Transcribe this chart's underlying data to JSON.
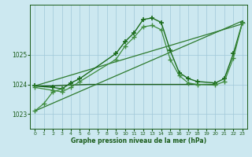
{
  "background_color": "#cce8f0",
  "grid_color": "#a0c8d8",
  "line_color_dark": "#1a5c1a",
  "xlabel": "Graphe pression niveau de la mer (hPa)",
  "xlim": [
    -0.5,
    23.5
  ],
  "ylim": [
    1022.5,
    1026.7
  ],
  "yticks": [
    1023,
    1024,
    1025
  ],
  "xticks": [
    0,
    1,
    2,
    3,
    4,
    5,
    6,
    7,
    8,
    9,
    10,
    11,
    12,
    13,
    14,
    15,
    16,
    17,
    18,
    19,
    20,
    21,
    22,
    23
  ],
  "series": [
    {
      "x": [
        0,
        1,
        2,
        3,
        4,
        5,
        6,
        7,
        8,
        9,
        10,
        11,
        12,
        13,
        14,
        15,
        16,
        17,
        18,
        19,
        20
      ],
      "y": [
        1023.95,
        1023.95,
        1023.95,
        1023.97,
        1023.98,
        1023.99,
        1024.0,
        1024.0,
        1024.0,
        1024.0,
        1024.0,
        1024.0,
        1024.0,
        1024.0,
        1024.0,
        1024.0,
        1024.0,
        1024.0,
        1024.0,
        1024.0,
        1024.0
      ],
      "color": "#1a5c1a",
      "lw": 1.0,
      "marker": null,
      "ls": "-"
    },
    {
      "x": [
        0,
        23
      ],
      "y": [
        1023.1,
        1026.15
      ],
      "color": "#2d7a2d",
      "lw": 0.9,
      "marker": null,
      "ls": "-"
    },
    {
      "x": [
        0,
        23
      ],
      "y": [
        1023.95,
        1026.05
      ],
      "color": "#2d7a2d",
      "lw": 0.9,
      "marker": null,
      "ls": "-"
    },
    {
      "x": [
        0,
        2,
        3,
        4,
        5,
        9,
        10,
        11,
        12,
        13,
        14,
        15,
        16,
        17,
        18,
        20,
        21,
        22,
        23
      ],
      "y": [
        1023.95,
        1023.9,
        1023.85,
        1024.05,
        1024.2,
        1025.05,
        1025.45,
        1025.75,
        1026.2,
        1026.25,
        1026.1,
        1025.15,
        1024.4,
        1024.2,
        1024.1,
        1024.05,
        1024.2,
        1025.05,
        1026.1
      ],
      "color": "#1a6b1a",
      "lw": 1.0,
      "marker": "+",
      "ms": 5,
      "mew": 1.2,
      "ls": "-"
    },
    {
      "x": [
        0,
        2,
        3,
        4,
        5,
        9,
        10,
        11,
        12,
        13,
        14,
        15,
        16,
        17,
        18,
        20,
        21,
        22,
        23
      ],
      "y": [
        1023.9,
        1023.8,
        1023.75,
        1023.9,
        1024.1,
        1024.85,
        1025.3,
        1025.6,
        1025.95,
        1026.0,
        1025.85,
        1024.85,
        1024.3,
        1024.05,
        1024.0,
        1023.98,
        1024.1,
        1024.9,
        1026.1
      ],
      "color": "#3d8c3d",
      "lw": 0.9,
      "marker": "+",
      "ms": 4,
      "mew": 1.0,
      "ls": "-"
    },
    {
      "x": [
        0,
        1,
        2,
        3
      ],
      "y": [
        1023.1,
        1023.35,
        1023.75,
        1023.85
      ],
      "color": "#3d8c3d",
      "lw": 0.9,
      "marker": "+",
      "ms": 4,
      "mew": 1.0,
      "ls": "-"
    }
  ]
}
